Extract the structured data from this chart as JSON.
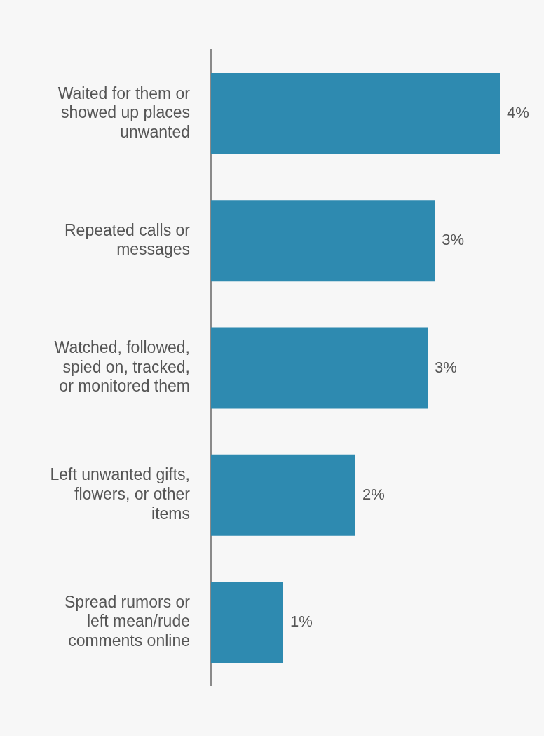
{
  "chart_data": {
    "type": "bar",
    "orientation": "horizontal",
    "categories": [
      "Waited for them or showed up places unwanted",
      "Repeated calls or messages",
      "Watched, followed, spied on, tracked, or monitored them",
      "Left unwanted gifts, flowers, or other items",
      "Spread rumors or left mean/rude comments online"
    ],
    "values": [
      4,
      3.1,
      3,
      2,
      1
    ],
    "value_labels": [
      "4%",
      "3%",
      "3%",
      "2%",
      "1%"
    ],
    "color": "#2e8ab0",
    "legend": false
  }
}
